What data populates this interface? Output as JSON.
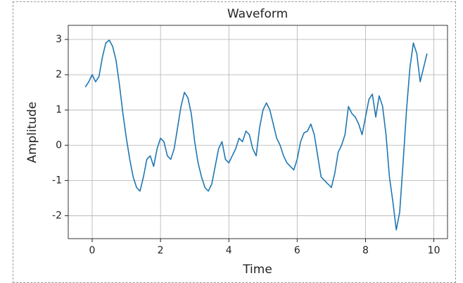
{
  "chart_data": {
    "type": "line",
    "title": "Waveform",
    "x_label": "Time",
    "y_label": "Amplitude",
    "color": "#1f77b4",
    "grid": true,
    "xlim": [
      -0.7,
      10.4
    ],
    "xticks": [
      0,
      2,
      4,
      6,
      8,
      10
    ],
    "ylim": [
      -2.65,
      3.4
    ],
    "yticks": [
      -2,
      -1,
      0,
      1,
      2,
      3
    ],
    "x": [
      -0.2,
      -0.1,
      0.0,
      0.1,
      0.2,
      0.3,
      0.4,
      0.5,
      0.6,
      0.7,
      0.8,
      0.9,
      1.0,
      1.1,
      1.2,
      1.3,
      1.4,
      1.5,
      1.6,
      1.7,
      1.8,
      1.9,
      2.0,
      2.1,
      2.2,
      2.3,
      2.4,
      2.5,
      2.6,
      2.7,
      2.8,
      2.9,
      3.0,
      3.1,
      3.2,
      3.3,
      3.4,
      3.5,
      3.6,
      3.7,
      3.8,
      3.9,
      4.0,
      4.1,
      4.2,
      4.3,
      4.4,
      4.5,
      4.6,
      4.7,
      4.8,
      4.9,
      5.0,
      5.1,
      5.2,
      5.3,
      5.4,
      5.5,
      5.6,
      5.7,
      5.8,
      5.9,
      6.0,
      6.1,
      6.2,
      6.3,
      6.4,
      6.5,
      6.6,
      6.7,
      6.8,
      6.9,
      7.0,
      7.1,
      7.2,
      7.3,
      7.4,
      7.5,
      7.6,
      7.7,
      7.8,
      7.9,
      8.0,
      8.1,
      8.2,
      8.3,
      8.4,
      8.5,
      8.6,
      8.7,
      8.8,
      8.9,
      9.0,
      9.1,
      9.2,
      9.3,
      9.4,
      9.5,
      9.6,
      9.7,
      9.8
    ],
    "values": [
      1.65,
      1.8,
      2.0,
      1.8,
      1.95,
      2.5,
      2.9,
      2.98,
      2.8,
      2.4,
      1.7,
      0.9,
      0.2,
      -0.4,
      -0.9,
      -1.2,
      -1.3,
      -0.9,
      -0.4,
      -0.3,
      -0.6,
      -0.1,
      0.2,
      0.1,
      -0.3,
      -0.4,
      -0.1,
      0.5,
      1.1,
      1.5,
      1.35,
      0.9,
      0.1,
      -0.5,
      -0.9,
      -1.2,
      -1.3,
      -1.1,
      -0.6,
      -0.1,
      0.1,
      -0.4,
      -0.5,
      -0.3,
      -0.1,
      0.2,
      0.1,
      0.4,
      0.3,
      -0.1,
      -0.3,
      0.5,
      1.0,
      1.2,
      1.0,
      0.6,
      0.2,
      0.0,
      -0.3,
      -0.5,
      -0.6,
      -0.7,
      -0.4,
      0.1,
      0.35,
      0.4,
      0.6,
      0.3,
      -0.3,
      -0.9,
      -1.0,
      -1.1,
      -1.2,
      -0.8,
      -0.2,
      0.0,
      0.3,
      1.1,
      0.9,
      0.8,
      0.6,
      0.3,
      0.8,
      1.3,
      1.45,
      0.8,
      1.4,
      1.1,
      0.3,
      -0.9,
      -1.6,
      -2.4,
      -1.9,
      -0.5,
      1.0,
      2.2,
      2.9,
      2.6,
      1.8,
      2.2,
      2.6
    ]
  }
}
